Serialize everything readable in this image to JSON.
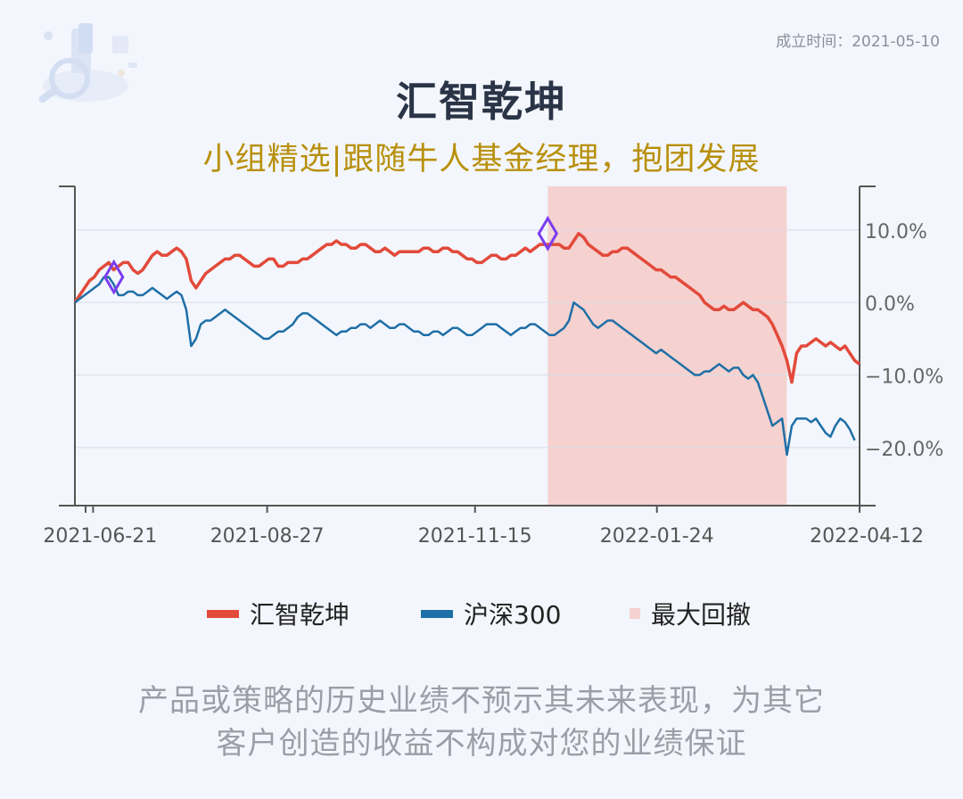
{
  "header": {
    "established": "成立时间：2021-05-10",
    "title": "汇智乾坤",
    "subtitle": "小组精选|跟随牛人基金经理，抱团发展"
  },
  "colors": {
    "fund": "#e24a3b",
    "index": "#1f6fa7",
    "drawdown_fill": "#f5d2cf",
    "marker": "#7a3cf0",
    "axis": "#555555"
  },
  "legend": {
    "fund": "汇智乾坤",
    "index": "沪深300",
    "drawdown": "最大回撤"
  },
  "chart_data": {
    "type": "line",
    "x_ticks": [
      "2021-06-21",
      "2021-08-27",
      "2021-11-15",
      "2022-01-24",
      "2022-04-12"
    ],
    "y_ticks": [
      "10.0%",
      "0.0%",
      "−10.0%",
      "−20.0%"
    ],
    "ylim": [
      -28,
      16
    ],
    "grid": "horizontal",
    "legend_position": "bottom",
    "series": [
      {
        "name": "汇智乾坤",
        "values": [
          0,
          1,
          2,
          3,
          3.5,
          4.5,
          5,
          5.5,
          4.5,
          5,
          5.5,
          5.5,
          4.5,
          4,
          4.5,
          5.5,
          6.5,
          7,
          6.5,
          6.5,
          7,
          7.5,
          7,
          6,
          3,
          2,
          3,
          4,
          4.5,
          5,
          5.5,
          6,
          6,
          6.5,
          6.5,
          6,
          5.5,
          5,
          5,
          5.5,
          6,
          6,
          5,
          5,
          5.5,
          5.5,
          5.5,
          6,
          6,
          6.5,
          7,
          7.5,
          8,
          8,
          8.5,
          8,
          8,
          7.5,
          7.5,
          8,
          8,
          7.5,
          7,
          7,
          7.5,
          7,
          6.5,
          7,
          7,
          7,
          7,
          7,
          7.5,
          7.5,
          7,
          7,
          7.5,
          7.5,
          7,
          7,
          6.5,
          6,
          6,
          5.5,
          5.5,
          6,
          6.5,
          6.5,
          6,
          6,
          6.5,
          6.5,
          7,
          7.5,
          7,
          7.5,
          8,
          8,
          8,
          8,
          8,
          7.5,
          7.5,
          8.5,
          9.5,
          9,
          8,
          7.5,
          7,
          6.5,
          6.5,
          7,
          7,
          7.5,
          7.5,
          7,
          6.5,
          6,
          5.5,
          5,
          4.5,
          4.5,
          4,
          3.5,
          3.5,
          3,
          2.5,
          2,
          1.5,
          1,
          0,
          -0.5,
          -1,
          -1,
          -0.5,
          -1,
          -1,
          -0.5,
          0,
          -0.5,
          -1,
          -1,
          -1.5,
          -2,
          -3,
          -4.5,
          -6,
          -8,
          -11,
          -7,
          -6,
          -6,
          -5.5,
          -5,
          -5.5,
          -6,
          -5.5,
          -6,
          -6.5,
          -6,
          -7,
          -8,
          -8.5
        ]
      },
      {
        "name": "沪深300",
        "values": [
          0,
          0.5,
          1,
          1.5,
          2,
          2.5,
          3.5,
          3.5,
          2.5,
          1,
          1,
          1.5,
          1.5,
          1,
          1,
          1.5,
          2,
          1.5,
          1,
          0.5,
          1,
          1.5,
          1,
          -1,
          -6,
          -5,
          -3,
          -2.5,
          -2.5,
          -2,
          -1.5,
          -1,
          -1.5,
          -2,
          -2.5,
          -3,
          -3.5,
          -4,
          -4.5,
          -5,
          -5,
          -4.5,
          -4,
          -4,
          -3.5,
          -3,
          -2,
          -1.5,
          -1.5,
          -2,
          -2.5,
          -3,
          -3.5,
          -4,
          -4.5,
          -4,
          -4,
          -3.5,
          -3.5,
          -3,
          -3,
          -3.5,
          -3,
          -2.5,
          -3,
          -3.5,
          -3.5,
          -3,
          -3,
          -3.5,
          -4,
          -4,
          -4.5,
          -4.5,
          -4,
          -4,
          -4.5,
          -4,
          -3.5,
          -3.5,
          -4,
          -4.5,
          -4.5,
          -4,
          -3.5,
          -3,
          -3,
          -3,
          -3.5,
          -4,
          -4.5,
          -4,
          -3.5,
          -3.5,
          -3,
          -3,
          -3.5,
          -4,
          -4.5,
          -4.5,
          -4,
          -3.5,
          -2.5,
          0,
          -0.5,
          -1,
          -2,
          -3,
          -3.5,
          -3,
          -2.5,
          -2.5,
          -3,
          -3.5,
          -4,
          -4.5,
          -5,
          -5.5,
          -6,
          -6.5,
          -7,
          -6.5,
          -7,
          -7.5,
          -8,
          -8.5,
          -9,
          -9.5,
          -10,
          -10,
          -9.5,
          -9.5,
          -9,
          -8.5,
          -9,
          -9.5,
          -9,
          -9,
          -10,
          -10.5,
          -10,
          -11,
          -13,
          -15,
          -17,
          -16.5,
          -16,
          -21,
          -17,
          -16,
          -16,
          -16,
          -16.5,
          -16,
          -17,
          -18,
          -18.5,
          -17,
          -16,
          -16.5,
          -17.5,
          -19
        ]
      }
    ],
    "max_drawdown_period": {
      "start": "2021-12-13",
      "end": "2022-03-15"
    },
    "markers": [
      {
        "label": "",
        "x": "2021-06-29",
        "y": 3.5
      },
      {
        "label": "",
        "x": "2021-12-13",
        "y": 9.5
      }
    ]
  },
  "disclaimer": {
    "line1": "产品或策略的历史业绩不预示其未来表现，为其它",
    "line2": "客户创造的收益不构成对您的业绩保证"
  }
}
